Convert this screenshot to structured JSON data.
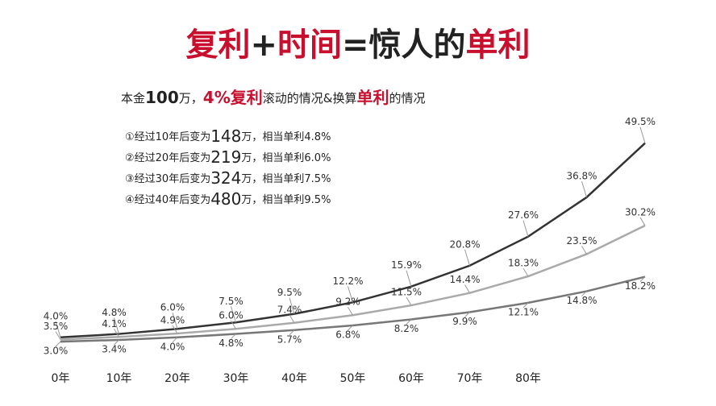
{
  "chart_data": {
    "type": "line",
    "title_parts": [
      {
        "text": "复利",
        "color": "#c8102e"
      },
      {
        "text": "+",
        "color": "#222"
      },
      {
        "text": "时间",
        "color": "#c8102e"
      },
      {
        "text": "=",
        "color": "#222"
      },
      {
        "text": "惊人的",
        "color": "#222"
      },
      {
        "text": "单利",
        "color": "#c8102e"
      }
    ],
    "subtitle_parts": [
      {
        "text": "本金",
        "color": "#222",
        "size": 15
      },
      {
        "text": "100",
        "color": "#222",
        "size": 20
      },
      {
        "text": "万，",
        "color": "#222",
        "size": 15
      },
      {
        "text": "4%复利",
        "color": "#c8102e",
        "size": 20
      },
      {
        "text": "滚动的情况&换算",
        "color": "#222",
        "size": 15
      },
      {
        "text": "单利",
        "color": "#c8102e",
        "size": 20
      },
      {
        "text": "的情况",
        "color": "#222",
        "size": 15
      }
    ],
    "notes": [
      [
        "①经过10年后变为",
        "148",
        "万，相当单利4.8%"
      ],
      [
        "②经过20年后变为",
        "219",
        "万，相当单利6.0%"
      ],
      [
        "③经过30年后变为",
        "324",
        "万，相当单利7.5%"
      ],
      [
        "④经过40年后变为",
        "480",
        "万，相当单利9.5%"
      ]
    ],
    "categories": [
      "0年",
      "10年",
      "20年",
      "30年",
      "40年",
      "50年",
      "60年",
      "70年",
      "80年",
      null,
      null
    ],
    "series": [
      {
        "color": "#333333",
        "values": [
          4.0,
          4.8,
          6.0,
          7.5,
          9.5,
          12.2,
          15.9,
          20.8,
          27.6,
          36.8,
          49.5
        ],
        "value_labels": [
          "4.0%",
          "4.8%",
          "6.0%",
          "7.5%",
          "9.5%",
          "12.2%",
          "15.9%",
          "20.8%",
          "27.6%",
          "36.8%",
          "49.5%"
        ]
      },
      {
        "color": "#aaaaaa",
        "values": [
          3.5,
          4.1,
          4.9,
          6.0,
          7.4,
          9.2,
          11.5,
          14.4,
          18.3,
          23.5,
          30.2
        ],
        "value_labels": [
          "3.5%",
          "4.1%",
          "4.9%",
          "6.0%",
          "7.4%",
          "9.2%",
          "11.5%",
          "14.4%",
          "18.3%",
          "23.5%",
          "30.2%"
        ]
      },
      {
        "color": "#777777",
        "values": [
          3.0,
          3.4,
          4.0,
          4.8,
          5.7,
          6.8,
          8.2,
          9.9,
          12.1,
          14.8,
          18.2
        ],
        "value_labels": [
          "3.0%",
          "3.4%",
          "4.0%",
          "4.8%",
          "5.7%",
          "6.8%",
          "8.2%",
          "9.9%",
          "12.1%",
          "14.8%",
          "18.2%"
        ]
      }
    ]
  }
}
